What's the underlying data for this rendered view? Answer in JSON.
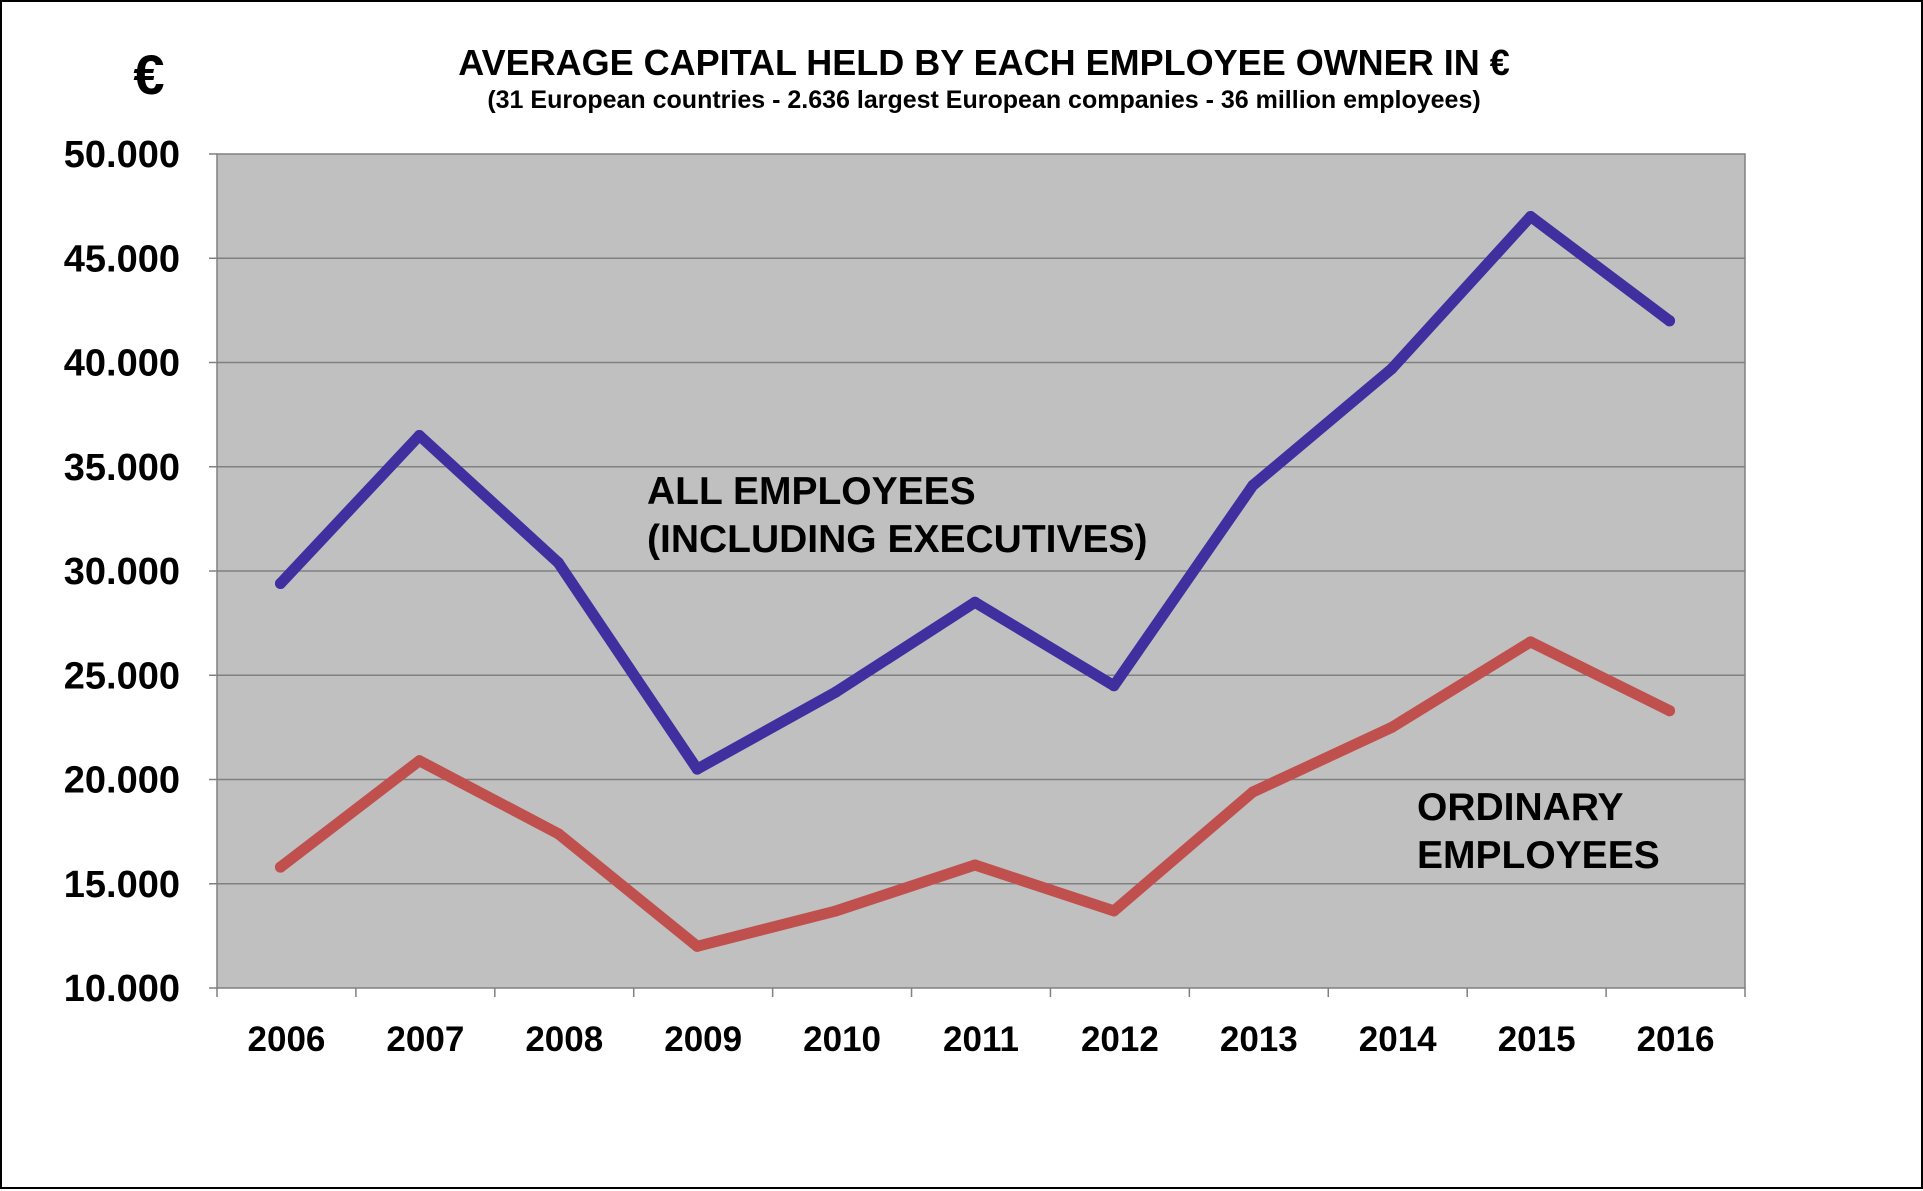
{
  "chart_data": {
    "type": "line",
    "title": "AVERAGE CAPITAL HELD BY EACH EMPLOYEE OWNER IN  €",
    "subtitle": "(31 European countries - 2.636 largest European companies - 36 million employees)",
    "unit_label": "€",
    "categories": [
      "2006",
      "2007",
      "2008",
      "2009",
      "2010",
      "2011",
      "2012",
      "2013",
      "2014",
      "2015",
      "2016"
    ],
    "y_ticks": [
      "50.000",
      "45.000",
      "40.000",
      "35.000",
      "30.000",
      "25.000",
      "20.000",
      "15.000",
      "10.000"
    ],
    "ylim": [
      10000,
      50000
    ],
    "grid": true,
    "plot_background": "#c0c0c0",
    "series": [
      {
        "name_lines": [
          "ALL EMPLOYEES",
          "(INCLUDING EXECUTIVES)"
        ],
        "color": "#3f2f9f",
        "values": [
          29400,
          36500,
          30400,
          20500,
          24200,
          28500,
          24500,
          34100,
          39700,
          47000,
          42000
        ]
      },
      {
        "name_lines": [
          "ORDINARY",
          "EMPLOYEES"
        ],
        "color": "#c0504d",
        "values": [
          15800,
          20900,
          17400,
          12000,
          13700,
          15900,
          13700,
          19400,
          22500,
          26600,
          23300
        ]
      }
    ]
  }
}
